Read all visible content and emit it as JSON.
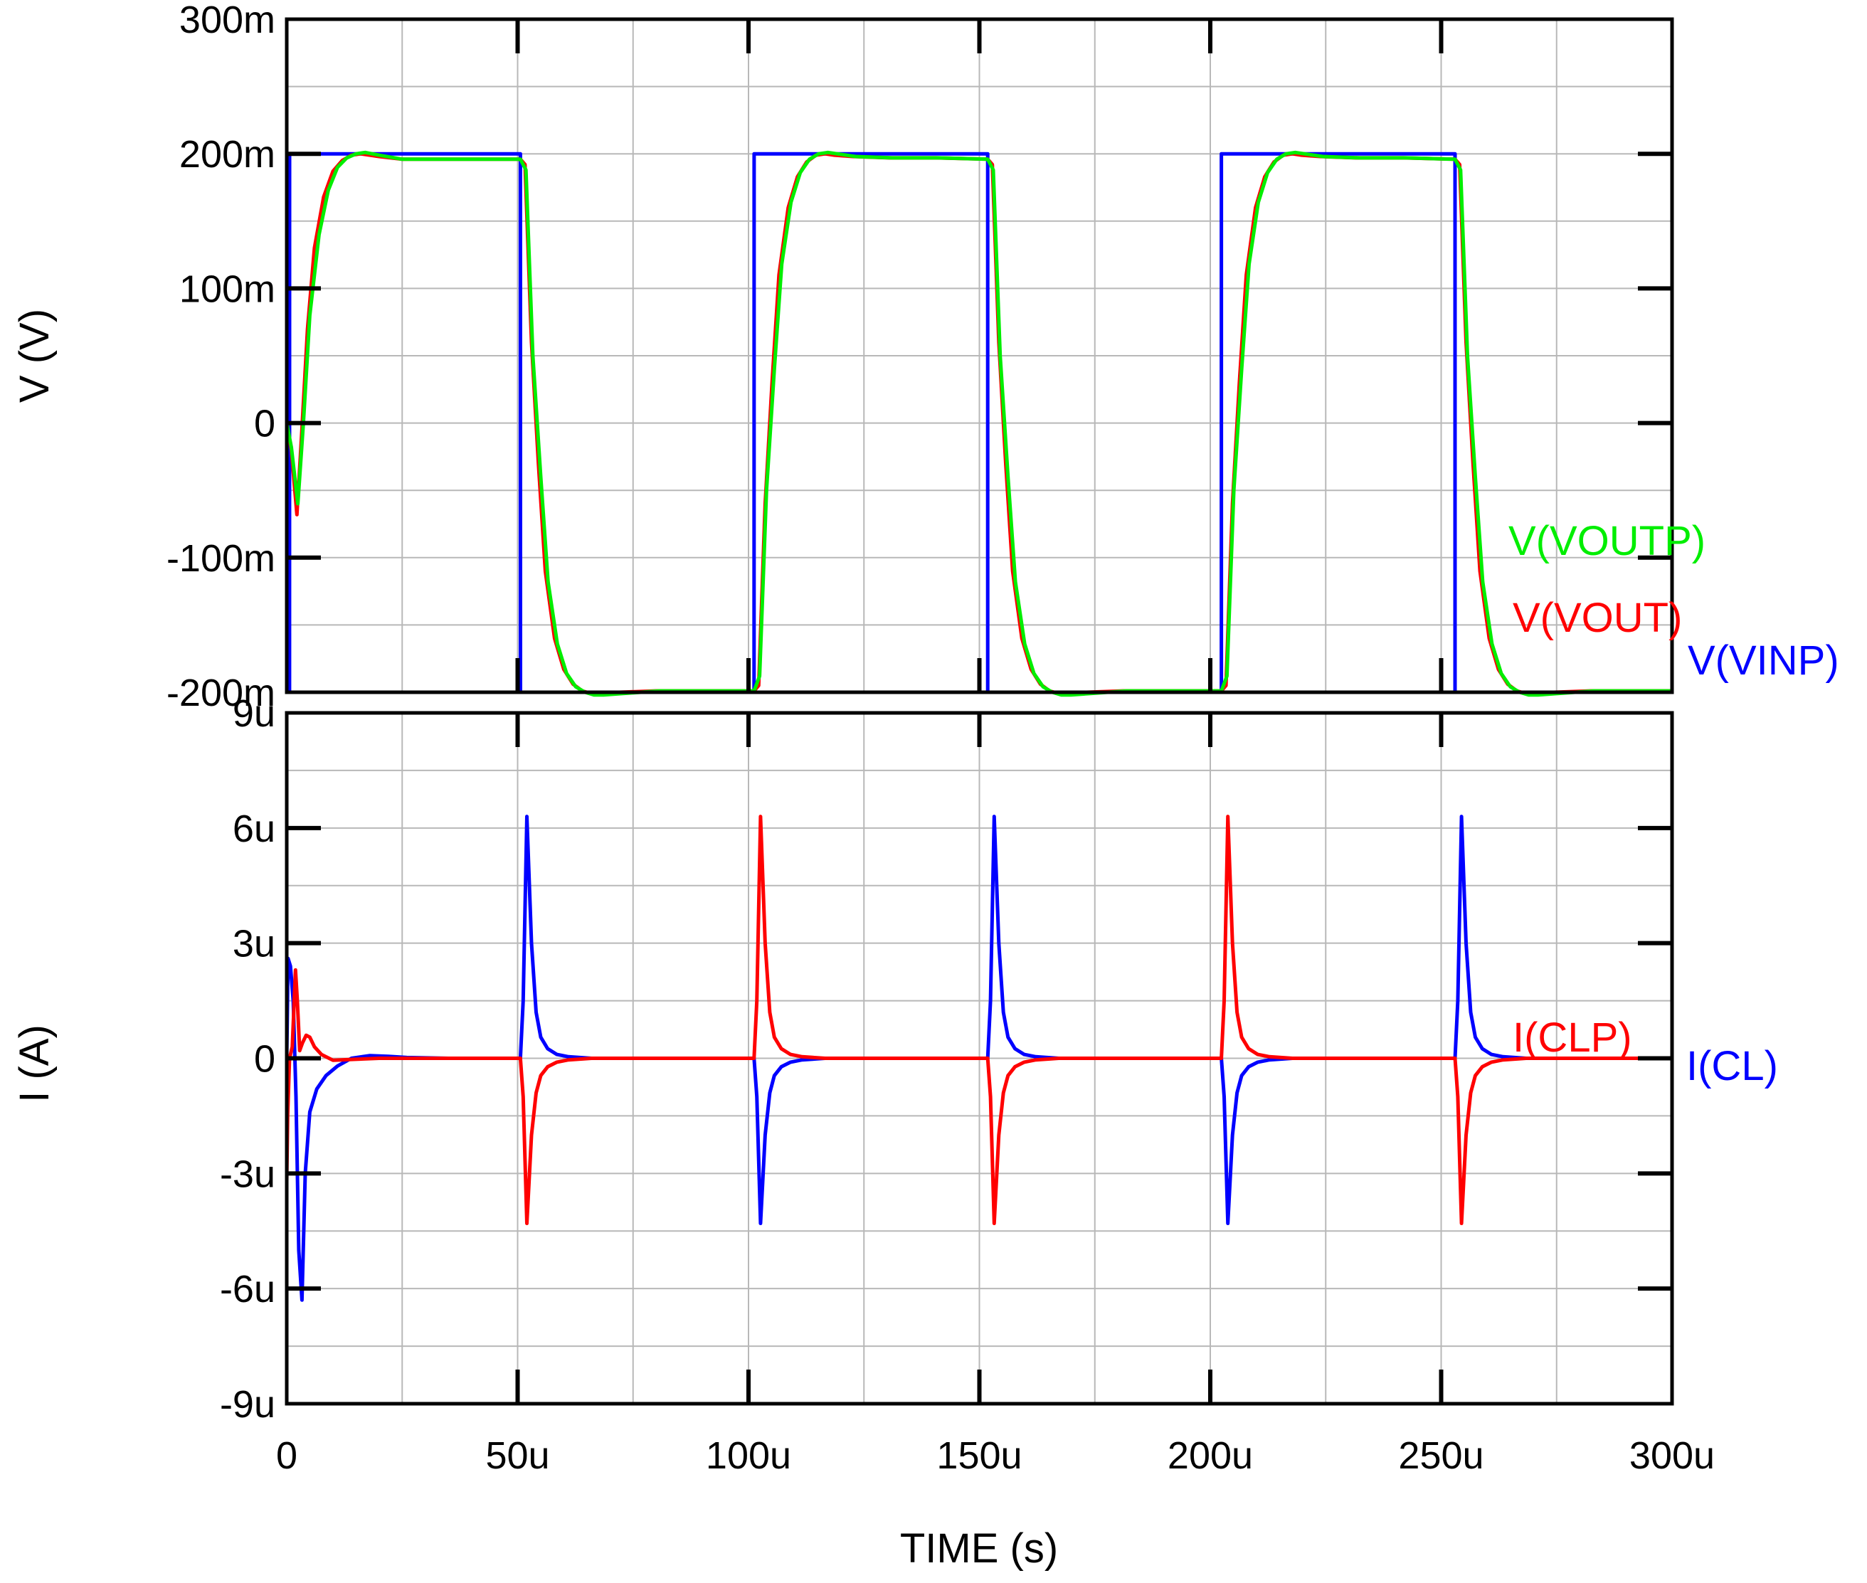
{
  "chart_data": [
    {
      "type": "line",
      "ylabel": "V (V)",
      "xlim": [
        0,
        300
      ],
      "ylim": [
        -200,
        300
      ],
      "x_units": "u",
      "y_units": "m",
      "yticks": [
        -200,
        -100,
        0,
        100,
        200,
        300
      ],
      "ytick_labels": [
        "-200m",
        "-100m",
        "0",
        "100m",
        "200m",
        "300m"
      ],
      "grid": true,
      "series": [
        {
          "name": "V(VINP)",
          "color": "#0000ff",
          "x": [
            0,
            0.6,
            0.61,
            50.6,
            50.61,
            101.2,
            101.21,
            151.8,
            151.81,
            202.4,
            202.41,
            253.0,
            253.01,
            300
          ],
          "y": [
            0,
            -200,
            200,
            200,
            -200,
            -200,
            200,
            200,
            -200,
            -200,
            200,
            200,
            -200,
            -200
          ]
        },
        {
          "name": "V(VOUT)",
          "color": "#ff0000",
          "x": [
            0,
            1,
            2.2,
            3.2,
            4.5,
            6,
            8,
            10,
            12,
            14,
            16,
            20,
            25,
            30,
            50.6,
            51.6,
            53,
            54.5,
            56,
            58,
            60,
            62,
            64,
            66,
            68,
            72,
            80,
            90,
            101.2,
            102.2,
            103.6,
            105.1,
            106.6,
            108.6,
            110.6,
            112.6,
            114.6,
            116.6,
            118.6,
            122.6,
            130.6,
            140.6,
            151.8,
            152.8,
            154.2,
            155.7,
            157.2,
            159.2,
            161.2,
            163.2,
            165.2,
            167.2,
            169.2,
            173.2,
            181.2,
            191.2,
            202.4,
            203.4,
            204.8,
            206.3,
            207.8,
            209.8,
            211.8,
            213.8,
            215.8,
            217.8,
            219.8,
            223.8,
            231.8,
            241.8,
            253.0,
            254.0,
            255.4,
            256.9,
            258.4,
            260.4,
            262.4,
            264.4,
            266.4,
            268.4,
            270.4,
            274.4,
            282.4,
            292.4,
            300
          ],
          "y": [
            0,
            -20,
            -68,
            -10,
            70,
            130,
            168,
            187,
            195,
            199,
            200,
            198,
            196,
            196,
            196,
            192,
            60,
            -30,
            -110,
            -160,
            -183,
            -194,
            -199,
            -201,
            -201,
            -200,
            -199,
            -199,
            -199,
            -195,
            -60,
            30,
            110,
            160,
            183,
            194,
            199,
            200,
            199,
            198,
            197,
            197,
            196,
            192,
            60,
            -30,
            -110,
            -160,
            -183,
            -194,
            -199,
            -201,
            -201,
            -200,
            -199,
            -199,
            -199,
            -195,
            -60,
            30,
            110,
            160,
            183,
            194,
            199,
            200,
            199,
            198,
            197,
            197,
            196,
            192,
            60,
            -30,
            -110,
            -160,
            -183,
            -194,
            -199,
            -201,
            -201,
            -200,
            -199,
            -199,
            -199
          ]
        },
        {
          "name": "V(VOUTP)",
          "color": "#00ee00",
          "x": [
            0,
            1,
            2.4,
            3.6,
            5,
            7,
            9,
            11,
            13,
            15,
            17,
            20,
            25,
            30,
            50.6,
            51.8,
            53.3,
            55,
            56.6,
            58.6,
            60.6,
            62.6,
            64.6,
            66.6,
            68.6,
            72.6,
            80.6,
            90.6,
            101.2,
            102.4,
            103.9,
            105.6,
            107.2,
            109.2,
            111.2,
            113.2,
            115.2,
            117.2,
            119.2,
            123.2,
            131.2,
            141.2,
            151.8,
            153.0,
            154.5,
            156.2,
            157.8,
            159.8,
            161.8,
            163.8,
            165.8,
            167.8,
            169.8,
            173.8,
            181.8,
            191.8,
            202.4,
            203.6,
            205.1,
            206.8,
            208.4,
            210.4,
            212.4,
            214.4,
            216.4,
            218.4,
            220.4,
            224.4,
            232.4,
            242.4,
            253.0,
            254.2,
            255.7,
            257.4,
            259.0,
            261.0,
            263.0,
            265.0,
            267.0,
            269.0,
            271.0,
            275.0,
            283.0,
            293.0,
            300
          ],
          "y": [
            0,
            -18,
            -60,
            0,
            80,
            140,
            173,
            190,
            197,
            200,
            201,
            199,
            196,
            196,
            196,
            188,
            50,
            -40,
            -118,
            -164,
            -186,
            -196,
            -200,
            -202,
            -202,
            -201,
            -199,
            -199,
            -199,
            -188,
            -50,
            40,
            118,
            164,
            186,
            196,
            200,
            201,
            200,
            198,
            197,
            197,
            196,
            188,
            50,
            -40,
            -118,
            -164,
            -186,
            -196,
            -200,
            -202,
            -202,
            -201,
            -199,
            -199,
            -199,
            -188,
            -50,
            40,
            118,
            164,
            186,
            196,
            200,
            201,
            200,
            198,
            197,
            197,
            196,
            188,
            50,
            -40,
            -118,
            -164,
            -186,
            -196,
            -200,
            -202,
            -202,
            -201,
            -199,
            -199,
            -199
          ]
        }
      ]
    },
    {
      "type": "line",
      "xlabel": "TIME  (s)",
      "ylabel": "I  (A)",
      "xlim": [
        0,
        300
      ],
      "ylim": [
        -9,
        9
      ],
      "x_units": "u",
      "y_units": "u",
      "xticks": [
        0,
        50,
        100,
        150,
        200,
        250,
        300
      ],
      "xtick_labels": [
        "0",
        "50u",
        "100u",
        "150u",
        "200u",
        "250u",
        "300u"
      ],
      "yticks": [
        -9,
        -6,
        -3,
        0,
        3,
        6,
        9
      ],
      "ytick_labels": [
        "-9u",
        "-6u",
        "-3u",
        "0",
        "3u",
        "6u",
        "9u"
      ],
      "grid": true,
      "series": [
        {
          "name": "I(CL)",
          "color": "#0000ff",
          "x": [
            0,
            0.3,
            0.8,
            1.4,
            2.0,
            2.6,
            3.3,
            4.0,
            5.0,
            6.5,
            8.5,
            11,
            14,
            18,
            22,
            26,
            35,
            50.6,
            51.2,
            52.0,
            53.0,
            54.0,
            55.0,
            56.5,
            58.5,
            61,
            66,
            75,
            101.2,
            101.8,
            102.6,
            103.6,
            104.6,
            105.6,
            107.1,
            109.1,
            111.6,
            116.6,
            125.6,
            151.8,
            152.4,
            153.2,
            154.2,
            155.2,
            156.2,
            157.7,
            159.7,
            162.2,
            167.2,
            176.2,
            202.4,
            203.0,
            203.8,
            204.8,
            205.8,
            206.8,
            208.3,
            210.3,
            212.8,
            217.8,
            226.8,
            253.0,
            253.6,
            254.4,
            255.4,
            256.4,
            257.4,
            258.9,
            260.9,
            263.4,
            268.4,
            277.4,
            300
          ],
          "y": [
            0,
            2.6,
            2.4,
            1.5,
            -1.0,
            -5.0,
            -6.3,
            -3.0,
            -1.4,
            -0.8,
            -0.45,
            -0.2,
            0,
            0.07,
            0.05,
            0.02,
            0,
            0,
            1.5,
            6.3,
            3.0,
            1.2,
            0.55,
            0.25,
            0.1,
            0.04,
            0,
            0,
            0,
            -1.0,
            -4.3,
            -2.0,
            -0.9,
            -0.45,
            -0.22,
            -0.1,
            -0.04,
            0,
            0,
            0,
            1.5,
            6.3,
            3.0,
            1.2,
            0.55,
            0.25,
            0.1,
            0.04,
            0,
            0,
            0,
            -1.0,
            -4.3,
            -2.0,
            -0.9,
            -0.45,
            -0.22,
            -0.1,
            -0.04,
            0,
            0,
            0,
            1.5,
            6.3,
            3.0,
            1.2,
            0.55,
            0.25,
            0.1,
            0.04,
            0,
            0,
            0
          ]
        },
        {
          "name": "I(CLP)",
          "color": "#ff0000",
          "x": [
            0,
            0.2,
            0.6,
            1.2,
            1.9,
            2.3,
            2.8,
            3.4,
            4.2,
            5.0,
            6.0,
            7.5,
            10,
            14,
            20,
            30,
            50.6,
            51.2,
            52.0,
            53.0,
            54.0,
            55.0,
            56.5,
            58.5,
            61,
            66,
            75,
            101.2,
            101.8,
            102.6,
            103.6,
            104.6,
            105.6,
            107.1,
            109.1,
            111.6,
            116.6,
            125.6,
            151.8,
            152.4,
            153.2,
            154.2,
            155.2,
            156.2,
            157.7,
            159.7,
            162.2,
            167.2,
            176.2,
            202.4,
            203.0,
            203.8,
            204.8,
            205.8,
            206.8,
            208.3,
            210.3,
            212.8,
            217.8,
            226.8,
            253.0,
            253.6,
            254.4,
            255.4,
            256.4,
            257.4,
            258.9,
            260.9,
            263.4,
            268.4,
            277.4,
            300
          ],
          "y": [
            -3.2,
            -1.5,
            0,
            0.3,
            2.3,
            1.5,
            0.2,
            0.4,
            0.6,
            0.55,
            0.3,
            0.1,
            -0.05,
            -0.03,
            0,
            0,
            0,
            -1.0,
            -4.3,
            -2.0,
            -0.9,
            -0.45,
            -0.22,
            -0.1,
            -0.04,
            0,
            0,
            0,
            1.5,
            6.3,
            3.0,
            1.2,
            0.55,
            0.25,
            0.1,
            0.04,
            0,
            0,
            0,
            -1.0,
            -4.3,
            -2.0,
            -0.9,
            -0.45,
            -0.22,
            -0.1,
            -0.04,
            0,
            0,
            0,
            1.5,
            6.3,
            3.0,
            1.2,
            0.55,
            0.25,
            0.1,
            0.04,
            0,
            0,
            0,
            -1.0,
            -4.3,
            -2.0,
            -0.9,
            -0.45,
            -0.22,
            -0.1,
            -0.04,
            0,
            0,
            0
          ]
        }
      ]
    }
  ]
}
